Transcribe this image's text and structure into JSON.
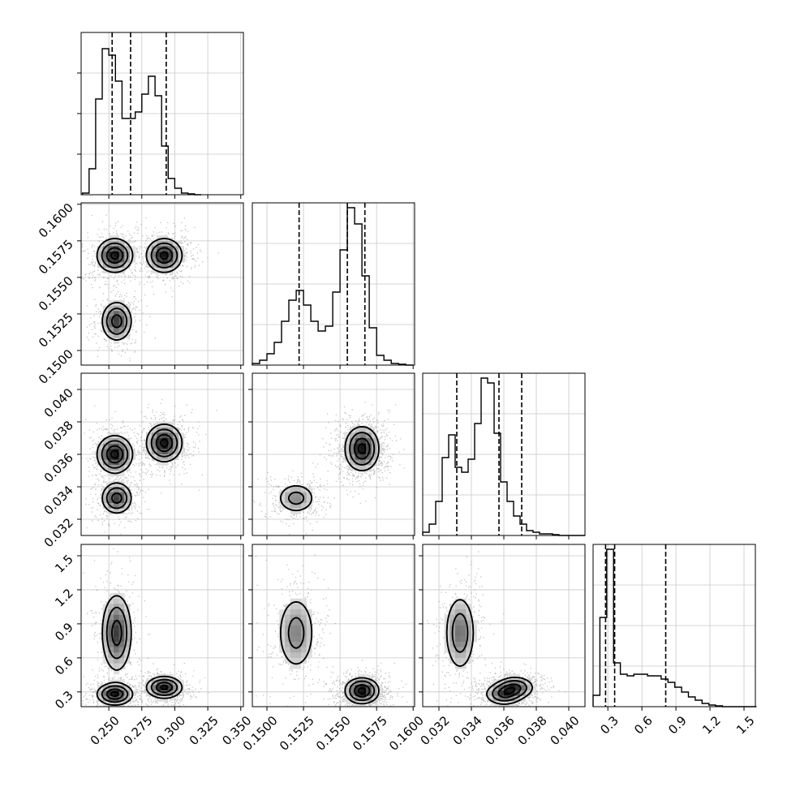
{
  "chart_data": {
    "type": "corner",
    "parameters": [
      {
        "ticks": [
          "0.250",
          "0.275",
          "0.300",
          "0.325",
          "0.350"
        ],
        "range": [
          0.229,
          0.352
        ],
        "quantiles": [
          0.2525,
          0.2665,
          0.2935
        ],
        "hist": {
          "edges_start": 0.23,
          "bin_width": 0.005,
          "counts": [
            0.01,
            0.16,
            0.59,
            0.9,
            0.86,
            0.7,
            0.47,
            0.47,
            0.51,
            0.62,
            0.73,
            0.61,
            0.3,
            0.1,
            0.04,
            0.01,
            0.005,
            0
          ]
        }
      },
      {
        "ticks": [
          "0.1500",
          "0.1525",
          "0.1550",
          "0.1575",
          "0.1600"
        ],
        "range": [
          0.149,
          0.1601
        ],
        "quantiles": [
          0.1522,
          0.1555,
          0.1567
        ],
        "hist": {
          "edges_start": 0.149,
          "bin_width": 0.0005,
          "counts": [
            0.01,
            0.03,
            0.07,
            0.14,
            0.27,
            0.4,
            0.46,
            0.37,
            0.27,
            0.21,
            0.24,
            0.45,
            0.71,
            0.97,
            0.87,
            0.55,
            0.23,
            0.06,
            0.03,
            0.01,
            0.005,
            0
          ]
        }
      },
      {
        "ticks": [
          "0.032",
          "0.034",
          "0.036",
          "0.038",
          "0.040"
        ],
        "range": [
          0.031,
          0.041
        ],
        "quantiles": [
          0.0331,
          0.0357,
          0.0371
        ],
        "hist": {
          "edges_start": 0.031,
          "bin_width": 0.0004,
          "counts": [
            0.02,
            0.07,
            0.21,
            0.48,
            0.62,
            0.42,
            0.39,
            0.47,
            0.69,
            0.97,
            0.94,
            0.63,
            0.33,
            0.21,
            0.12,
            0.07,
            0.03,
            0.02,
            0.01,
            0.01,
            0.005,
            0,
            0,
            0,
            0
          ]
        }
      },
      {
        "ticks": [
          "0.3",
          "0.6",
          "0.9",
          "1.2",
          "1.5"
        ],
        "range": [
          0.17,
          1.6
        ],
        "quantiles": [
          0.28,
          0.36,
          0.81
        ],
        "hist": {
          "edges_start": 0.17,
          "bin_width": 0.06,
          "counts": [
            0.07,
            0.55,
            0.97,
            0.27,
            0.2,
            0.19,
            0.2,
            0.2,
            0.19,
            0.19,
            0.17,
            0.15,
            0.12,
            0.09,
            0.06,
            0.04,
            0.02,
            0.01,
            0.005,
            0,
            0,
            0,
            0,
            0
          ]
        }
      }
    ],
    "modes": [
      {
        "p": [
          0.2545,
          0.1565,
          0.036,
          0.28
        ],
        "s": [
          0.007,
          0.0006,
          0.0006,
          0.05
        ],
        "w": 0.3
      },
      {
        "p": [
          0.292,
          0.1565,
          0.0367,
          0.34
        ],
        "s": [
          0.007,
          0.0006,
          0.0006,
          0.05
        ],
        "w": 0.3
      },
      {
        "p": [
          0.256,
          0.152,
          0.0333,
          0.82
        ],
        "s": [
          0.006,
          0.0007,
          0.0005,
          0.18
        ],
        "w": 0.25
      }
    ],
    "contour_levels": [
      0.39,
      0.86,
      1.39,
      1.92
    ],
    "xlabel": "",
    "ylabel": "",
    "title": "",
    "grid": true
  }
}
